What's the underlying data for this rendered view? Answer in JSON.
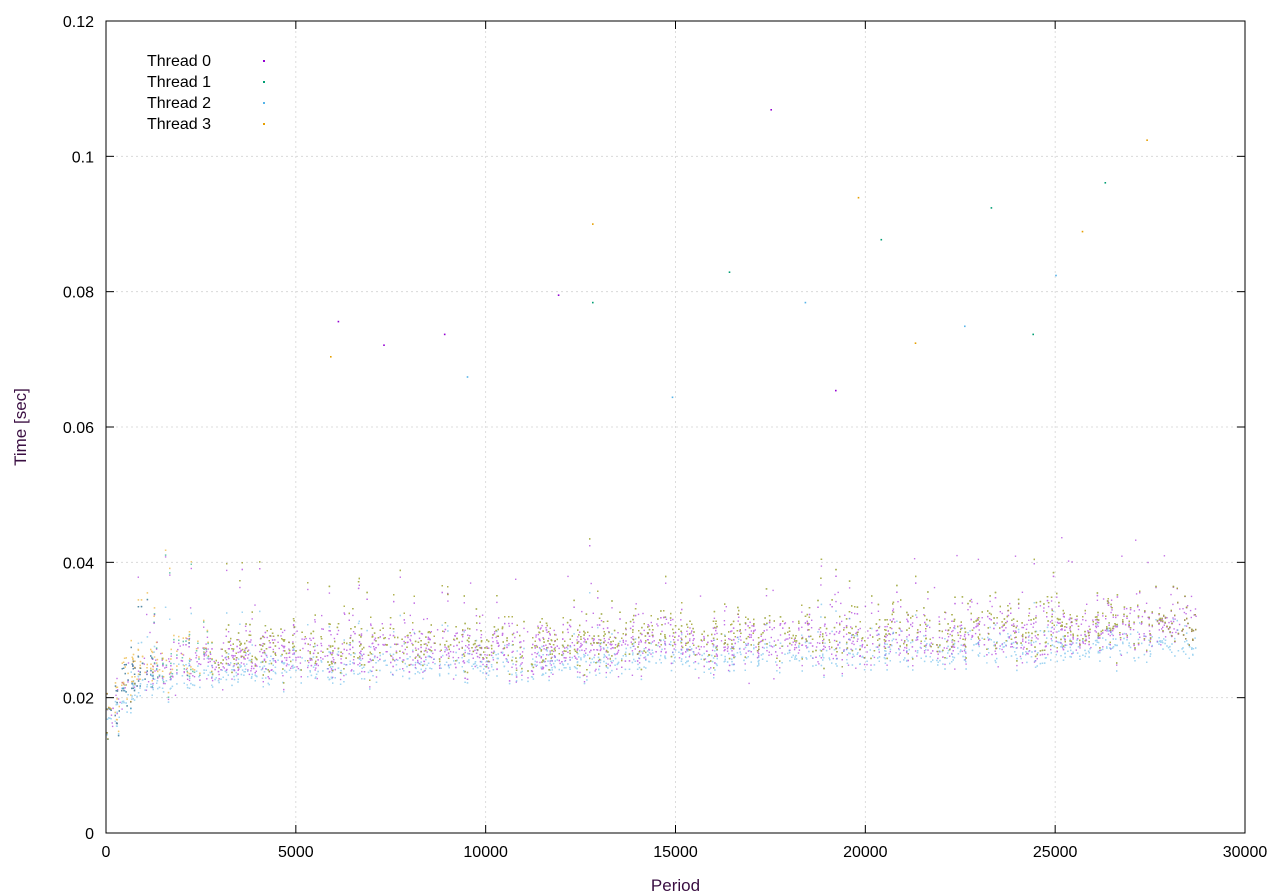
{
  "chart_data": {
    "type": "scatter",
    "title": "",
    "xlabel": "Period",
    "ylabel": "Time [sec]",
    "xlim": [
      0,
      30000
    ],
    "ylim": [
      0,
      0.12
    ],
    "x_ticks": [
      0,
      5000,
      10000,
      15000,
      20000,
      25000,
      30000
    ],
    "y_ticks": [
      0,
      0.02,
      0.04,
      0.06,
      0.08,
      0.1,
      0.12
    ],
    "x_tick_labels": [
      "0",
      "5000",
      "10000",
      "15000",
      "20000",
      "25000",
      "30000"
    ],
    "y_tick_labels": [
      "0",
      "0.02",
      "0.04",
      "0.06",
      "0.08",
      "0.1",
      "0.12"
    ],
    "grid": true,
    "legend_position": "top-left",
    "x_data_end": 28700,
    "series": [
      {
        "name": "Thread 0",
        "color": "#9400d3",
        "marker": "dot",
        "trend": [
          [
            0,
            0.017
          ],
          [
            500,
            0.022
          ],
          [
            1000,
            0.024
          ],
          [
            3000,
            0.026
          ],
          [
            8000,
            0.027
          ],
          [
            15000,
            0.028
          ],
          [
            22000,
            0.029
          ],
          [
            28700,
            0.031
          ]
        ],
        "typical_spread": 0.006,
        "outliers": [
          [
            6100,
            0.0757
          ],
          [
            7300,
            0.0722
          ],
          [
            8900,
            0.0738
          ],
          [
            11900,
            0.0796
          ],
          [
            17500,
            0.107
          ],
          [
            19200,
            0.0655
          ]
        ]
      },
      {
        "name": "Thread 1",
        "color": "#009e73",
        "marker": "plus",
        "trend": [
          [
            0,
            0.017
          ],
          [
            500,
            0.022
          ],
          [
            1000,
            0.024
          ],
          [
            3000,
            0.027
          ],
          [
            8000,
            0.028
          ],
          [
            15000,
            0.029
          ],
          [
            22000,
            0.03
          ],
          [
            28700,
            0.031
          ]
        ],
        "typical_spread": 0.006,
        "outliers": [
          [
            12800,
            0.0785
          ],
          [
            16400,
            0.083
          ],
          [
            20400,
            0.0878
          ],
          [
            23300,
            0.0925
          ],
          [
            26300,
            0.0962
          ],
          [
            24400,
            0.0738
          ]
        ]
      },
      {
        "name": "Thread 2",
        "color": "#56b4e9",
        "marker": "cross",
        "trend": [
          [
            0,
            0.016
          ],
          [
            500,
            0.02
          ],
          [
            1000,
            0.022
          ],
          [
            3000,
            0.024
          ],
          [
            8000,
            0.025
          ],
          [
            15000,
            0.026
          ],
          [
            22000,
            0.027
          ],
          [
            28700,
            0.028
          ]
        ],
        "typical_spread": 0.004,
        "outliers": [
          [
            18400,
            0.0785
          ],
          [
            22600,
            0.075
          ],
          [
            25000,
            0.0825
          ],
          [
            9500,
            0.0675
          ],
          [
            14900,
            0.0645
          ]
        ]
      },
      {
        "name": "Thread 3",
        "color": "#e69f00",
        "marker": "square",
        "trend": [
          [
            0,
            0.017
          ],
          [
            500,
            0.023
          ],
          [
            1000,
            0.025
          ],
          [
            3000,
            0.027
          ],
          [
            8000,
            0.028
          ],
          [
            15000,
            0.029
          ],
          [
            22000,
            0.03
          ],
          [
            28700,
            0.031
          ]
        ],
        "typical_spread": 0.006,
        "outliers": [
          [
            12800,
            0.0901
          ],
          [
            27400,
            0.1025
          ],
          [
            25700,
            0.089
          ],
          [
            19800,
            0.094
          ],
          [
            5900,
            0.0705
          ],
          [
            21300,
            0.0725
          ]
        ]
      }
    ]
  }
}
